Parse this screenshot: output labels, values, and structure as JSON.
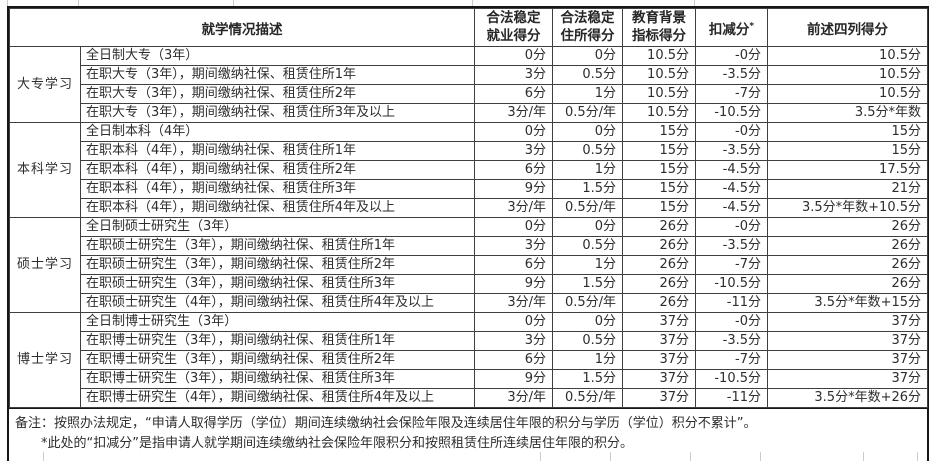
{
  "colors": {
    "table_border": "#161616",
    "inner_grid": "#3f3f3f",
    "text": "#2d2d2d",
    "background_grid_fragment": "#cccccc",
    "background": "#ffffff"
  },
  "table": {
    "header": {
      "study_description": "就学情况描述",
      "employment_score": "合法稳定\n就业得分",
      "residence_score": "合法稳定\n住所得分",
      "education_score": "教育背景\n指标得分",
      "deduction": "扣减分",
      "deduction_mark": "*",
      "total": "前述四列得分"
    },
    "groups": [
      {
        "category": "大专学习",
        "rows": [
          {
            "desc": "全日制大专（3年）",
            "employment": "0分",
            "residence": "0分",
            "education": "10.5分",
            "deduction": "-0分",
            "total": "10.5分"
          },
          {
            "desc": "在职大专（3年），期间缴纳社保、租赁住所1年",
            "employment": "3分",
            "residence": "0.5分",
            "education": "10.5分",
            "deduction": "-3.5分",
            "total": "10.5分"
          },
          {
            "desc": "在职大专（3年），期间缴纳社保、租赁住所2年",
            "employment": "6分",
            "residence": "1分",
            "education": "10.5分",
            "deduction": "-7分",
            "total": "10.5分"
          },
          {
            "desc": "在职大专（3年），期间缴纳社保、租赁住所3年及以上",
            "employment": "3分/年",
            "residence": "0.5分/年",
            "education": "10.5分",
            "deduction": "-10.5分",
            "total": "3.5分*年数"
          }
        ]
      },
      {
        "category": "本科学习",
        "rows": [
          {
            "desc": "全日制本科（4年）",
            "employment": "0分",
            "residence": "0分",
            "education": "15分",
            "deduction": "-0分",
            "total": "15分"
          },
          {
            "desc": "在职本科（4年），期间缴纳社保、租赁住所1年",
            "employment": "3分",
            "residence": "0.5分",
            "education": "15分",
            "deduction": "-3.5分",
            "total": "15分"
          },
          {
            "desc": "在职本科（4年），期间缴纳社保、租赁住所2年",
            "employment": "6分",
            "residence": "1分",
            "education": "15分",
            "deduction": "-4.5分",
            "total": "17.5分"
          },
          {
            "desc": "在职本科（4年），期间缴纳社保、租赁住所3年",
            "employment": "9分",
            "residence": "1.5分",
            "education": "15分",
            "deduction": "-4.5分",
            "total": "21分"
          },
          {
            "desc": "在职本科（4年），期间缴纳社保、租赁住所4年及以上",
            "employment": "3分/年",
            "residence": "0.5分/年",
            "education": "15分",
            "deduction": "-4.5分",
            "total": "3.5分*年数+10.5分"
          }
        ]
      },
      {
        "category": "硕士学习",
        "rows": [
          {
            "desc": "全日制硕士研究生（3年）",
            "employment": "0分",
            "residence": "0分",
            "education": "26分",
            "deduction": "-0分",
            "total": "26分"
          },
          {
            "desc": "在职硕士研究生（3年），期间缴纳社保、租赁住所1年",
            "employment": "3分",
            "residence": "0.5分",
            "education": "26分",
            "deduction": "-3.5分",
            "total": "26分"
          },
          {
            "desc": "在职硕士研究生（3年），期间缴纳社保、租赁住所2年",
            "employment": "6分",
            "residence": "1分",
            "education": "26分",
            "deduction": "-7分",
            "total": "26分"
          },
          {
            "desc": "在职硕士研究生（3年），期间缴纳社保、租赁住所3年",
            "employment": "9分",
            "residence": "1.5分",
            "education": "26分",
            "deduction": "-10.5分",
            "total": "26分"
          },
          {
            "desc": "在职硕士研究生（4年），期间缴纳社保、租赁住所4年及以上",
            "employment": "3分/年",
            "residence": "0.5分/年",
            "education": "26分",
            "deduction": "-11分",
            "total": "3.5分*年数+15分"
          }
        ]
      },
      {
        "category": "博士学习",
        "rows": [
          {
            "desc": "全日制博士研究生（3年）",
            "employment": "0分",
            "residence": "0分",
            "education": "37分",
            "deduction": "-0分",
            "total": "37分"
          },
          {
            "desc": "在职博士研究生（3年），期间缴纳社保、租赁住所1年",
            "employment": "3分",
            "residence": "0.5分",
            "education": "37分",
            "deduction": "-3.5分",
            "total": "37分"
          },
          {
            "desc": "在职博士研究生（3年），期间缴纳社保、租赁住所2年",
            "employment": "6分",
            "residence": "1分",
            "education": "37分",
            "deduction": "-7分",
            "total": "37分"
          },
          {
            "desc": "在职博士研究生（3年），期间缴纳社保、租赁住所3年",
            "employment": "9分",
            "residence": "1.5分",
            "education": "37分",
            "deduction": "-10.5分",
            "total": "37分"
          },
          {
            "desc": "在职博士研究生（4年），期间缴纳社保、租赁住所4年及以上",
            "employment": "3分/年",
            "residence": "0.5分/年",
            "education": "37分",
            "deduction": "-11分",
            "total": "3.5分*年数+26分"
          }
        ]
      }
    ],
    "notes": {
      "line1": "备注：按照办法规定，“申请人取得学历（学位）期间连续缴纳社会保险年限及连续居住年限的积分与学历（学位）积分不累计”。",
      "line2": "*此处的“扣减分”是指申请人就学期间连续缴纳社会保险年限积分和按照租赁住所连续居住年限的积分。"
    }
  }
}
